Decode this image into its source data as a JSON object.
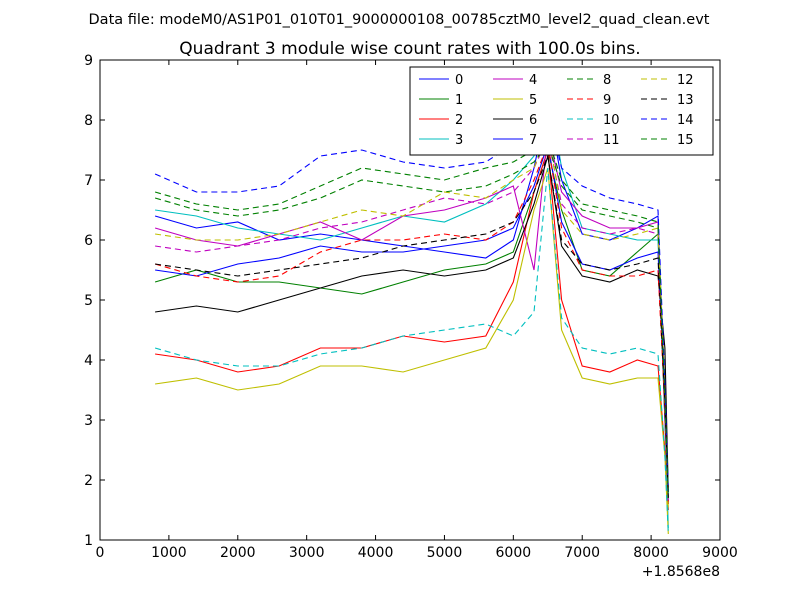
{
  "header": {
    "data_file": "Data file: modeM0/AS1P01_010T01_9000000108_00785cztM0_level2_quad_clean.evt"
  },
  "chart_data": {
    "type": "line",
    "title": "Quadrant 3 module wise count rates with 100.0s bins.",
    "xlabel": "",
    "ylabel": "",
    "xlim": [
      0,
      9000
    ],
    "ylim": [
      1,
      9
    ],
    "x_offset_label": "+1.8568e8",
    "xticks": [
      0,
      1000,
      2000,
      3000,
      4000,
      5000,
      6000,
      7000,
      8000,
      9000
    ],
    "yticks": [
      1,
      2,
      3,
      4,
      5,
      6,
      7,
      8,
      9
    ],
    "grid": false,
    "legend_position": "top-right",
    "legend_columns": 4,
    "x": [
      800,
      1400,
      2000,
      2600,
      3200,
      3800,
      4400,
      5000,
      5600,
      6000,
      6300,
      6500,
      6700,
      7000,
      7400,
      7800,
      8100,
      8200,
      8250
    ],
    "series": [
      {
        "name": "0",
        "color": "#0000ff",
        "dash": "solid",
        "values": [
          6.4,
          6.2,
          6.3,
          6.0,
          6.1,
          6.0,
          5.9,
          5.8,
          5.7,
          6.0,
          7.2,
          8.3,
          7.0,
          6.1,
          6.0,
          6.2,
          6.4,
          3.0,
          1.7
        ]
      },
      {
        "name": "1",
        "color": "#008000",
        "dash": "solid",
        "values": [
          5.3,
          5.5,
          5.3,
          5.3,
          5.2,
          5.1,
          5.3,
          5.5,
          5.6,
          5.8,
          6.8,
          7.5,
          6.5,
          5.5,
          5.4,
          5.8,
          6.1,
          3.0,
          1.6
        ]
      },
      {
        "name": "2",
        "color": "#ff0000",
        "dash": "solid",
        "values": [
          4.1,
          4.0,
          3.8,
          3.9,
          4.2,
          4.2,
          4.4,
          4.3,
          4.4,
          5.3,
          6.8,
          7.5,
          5.0,
          3.9,
          3.8,
          4.0,
          3.9,
          2.5,
          1.5
        ]
      },
      {
        "name": "3",
        "color": "#00bfbf",
        "dash": "solid",
        "values": [
          6.5,
          6.4,
          6.2,
          6.1,
          6.0,
          6.2,
          6.4,
          6.3,
          6.6,
          7.0,
          7.4,
          8.6,
          7.2,
          6.2,
          6.1,
          6.0,
          6.0,
          3.2,
          1.2
        ]
      },
      {
        "name": "4",
        "color": "#bf00bf",
        "dash": "solid",
        "values": [
          6.2,
          6.0,
          5.9,
          6.1,
          6.3,
          6.0,
          6.4,
          6.5,
          6.7,
          6.9,
          5.5,
          7.8,
          6.8,
          6.4,
          6.2,
          6.2,
          6.3,
          3.1,
          1.6
        ]
      },
      {
        "name": "5",
        "color": "#bfbf00",
        "dash": "solid",
        "values": [
          3.6,
          3.7,
          3.5,
          3.6,
          3.9,
          3.9,
          3.8,
          4.0,
          4.2,
          5.0,
          6.5,
          7.2,
          4.5,
          3.7,
          3.6,
          3.7,
          3.7,
          2.4,
          1.1
        ]
      },
      {
        "name": "6",
        "color": "#000000",
        "dash": "solid",
        "values": [
          4.8,
          4.9,
          4.8,
          5.0,
          5.2,
          5.4,
          5.5,
          5.4,
          5.5,
          5.7,
          6.6,
          7.4,
          5.9,
          5.4,
          5.3,
          5.5,
          5.4,
          4.2,
          1.8
        ]
      },
      {
        "name": "7",
        "color": "#0000ff",
        "dash": "solid",
        "values": [
          5.5,
          5.4,
          5.6,
          5.7,
          5.9,
          5.8,
          5.8,
          5.9,
          6.0,
          6.2,
          6.9,
          7.6,
          6.3,
          5.6,
          5.5,
          5.7,
          5.8,
          3.3,
          1.8
        ]
      },
      {
        "name": "8",
        "color": "#008000",
        "dash": "dashed",
        "values": [
          6.8,
          6.6,
          6.5,
          6.6,
          6.9,
          7.2,
          7.1,
          7.0,
          7.2,
          7.3,
          7.5,
          7.7,
          7.0,
          6.6,
          6.5,
          6.4,
          6.3,
          3.5,
          1.8
        ]
      },
      {
        "name": "9",
        "color": "#ff0000",
        "dash": "dashed",
        "values": [
          5.6,
          5.4,
          5.3,
          5.4,
          5.8,
          6.0,
          6.0,
          6.1,
          6.0,
          6.3,
          7.0,
          7.6,
          6.2,
          5.5,
          5.4,
          5.4,
          5.5,
          3.2,
          1.6
        ]
      },
      {
        "name": "10",
        "color": "#00bfbf",
        "dash": "dashed",
        "values": [
          4.2,
          4.0,
          3.9,
          3.9,
          4.1,
          4.2,
          4.4,
          4.5,
          4.6,
          4.4,
          4.8,
          7.2,
          4.7,
          4.2,
          4.1,
          4.2,
          4.1,
          2.4,
          1.1
        ]
      },
      {
        "name": "11",
        "color": "#bf00bf",
        "dash": "dashed",
        "values": [
          5.9,
          5.8,
          5.9,
          6.0,
          6.2,
          6.3,
          6.5,
          6.7,
          6.6,
          6.8,
          7.2,
          7.7,
          6.6,
          6.2,
          6.1,
          6.2,
          6.1,
          3.5,
          1.6
        ]
      },
      {
        "name": "12",
        "color": "#bfbf00",
        "dash": "dashed",
        "values": [
          6.1,
          6.0,
          6.0,
          6.1,
          6.3,
          6.5,
          6.4,
          6.8,
          6.7,
          7.0,
          7.2,
          7.8,
          6.5,
          6.1,
          6.0,
          6.1,
          6.2,
          3.4,
          1.5
        ]
      },
      {
        "name": "13",
        "color": "#000000",
        "dash": "dashed",
        "values": [
          5.6,
          5.5,
          5.4,
          5.5,
          5.6,
          5.7,
          5.9,
          6.0,
          6.1,
          6.3,
          6.8,
          7.4,
          6.0,
          5.6,
          5.5,
          5.6,
          5.7,
          3.3,
          1.7
        ]
      },
      {
        "name": "14",
        "color": "#0000ff",
        "dash": "dashed",
        "values": [
          7.1,
          6.8,
          6.8,
          6.9,
          7.4,
          7.5,
          7.3,
          7.2,
          7.3,
          7.6,
          7.8,
          8.2,
          7.2,
          6.9,
          6.7,
          6.6,
          6.5,
          3.6,
          1.8
        ]
      },
      {
        "name": "15",
        "color": "#008000",
        "dash": "dashed",
        "values": [
          6.7,
          6.5,
          6.4,
          6.5,
          6.7,
          7.0,
          6.9,
          6.8,
          6.9,
          7.1,
          7.3,
          7.6,
          6.9,
          6.5,
          6.4,
          6.3,
          6.2,
          3.4,
          1.7
        ]
      }
    ]
  }
}
